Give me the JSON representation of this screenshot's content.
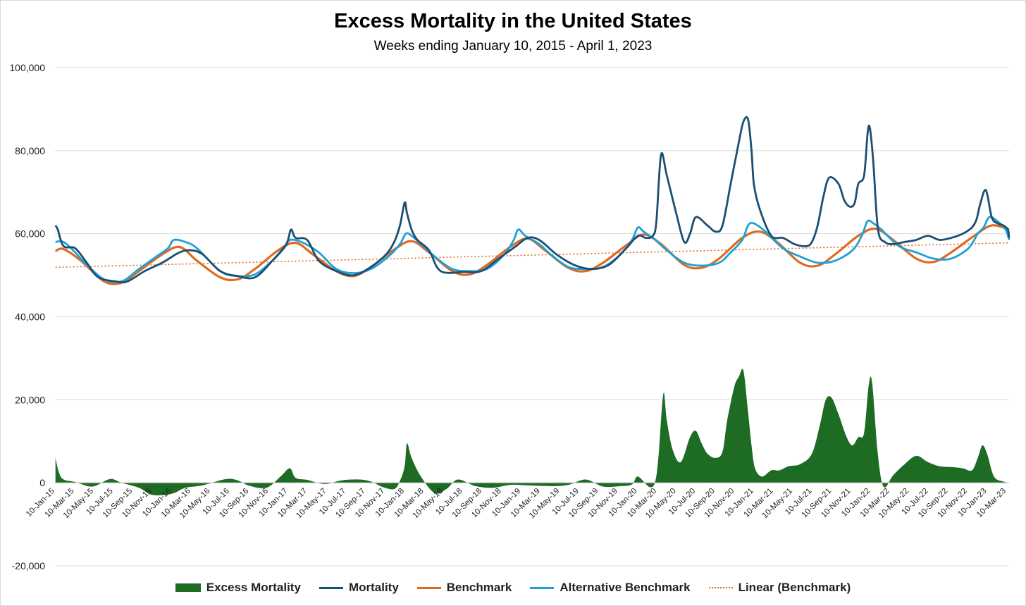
{
  "chart_data": {
    "type": "line",
    "title": "Excess Mortality in the United States",
    "subtitle": "Weeks ending January 10, 2015 - April 1, 2023",
    "xlabel": "",
    "ylabel": "",
    "ylim": [
      -20000,
      100000
    ],
    "yticks": [
      -20000,
      0,
      20000,
      40000,
      60000,
      80000,
      100000
    ],
    "ytick_labels": [
      "-20,000",
      "0",
      "20,000",
      "40,000",
      "60,000",
      "80,000",
      "100,000"
    ],
    "x_range": [
      2015.026,
      2023.25
    ],
    "xtick_labels": [
      "10-Jan-15",
      "10-Mar-15",
      "10-May-15",
      "10-Jul-15",
      "10-Sep-15",
      "10-Nov-15",
      "10-Jan-16",
      "10-Mar-16",
      "10-May-16",
      "10-Jul-16",
      "10-Sep-16",
      "10-Nov-16",
      "10-Jan-17",
      "10-Mar-17",
      "10-May-17",
      "10-Jul-17",
      "10-Sep-17",
      "10-Nov-17",
      "10-Jan-18",
      "10-Mar-18",
      "10-May-18",
      "10-Jul-18",
      "10-Sep-18",
      "10-Nov-18",
      "10-Jan-19",
      "10-Mar-19",
      "10-May-19",
      "10-Jul-19",
      "10-Sep-19",
      "10-Nov-19",
      "10-Jan-20",
      "10-Mar-20",
      "10-May-20",
      "10-Jul-20",
      "10-Sep-20",
      "10-Nov-20",
      "10-Jan-21",
      "10-Mar-21",
      "10-May-21",
      "10-Jul-21",
      "10-Sep-21",
      "10-Nov-21",
      "10-Jan-22",
      "10-Mar-22",
      "10-May-22",
      "10-Jul-22",
      "10-Sep-22",
      "10-Nov-22",
      "10-Jan-23",
      "10-Mar-23"
    ],
    "grid": true,
    "legend_position": "bottom",
    "colors": {
      "excess": "#1e6b24",
      "mortality": "#1b4f72",
      "benchmark": "#e06a1f",
      "alternative": "#1ea1d6",
      "linear": "#e06a1f",
      "grid": "#d9d9d9"
    },
    "series": [
      {
        "name": "Excess Mortality",
        "kind": "area",
        "x": [
          2015.03,
          2015.06,
          2015.1,
          2015.2,
          2015.35,
          2015.5,
          2015.6,
          2015.75,
          2015.85,
          2015.95,
          2016.05,
          2016.15,
          2016.3,
          2016.5,
          2016.6,
          2016.7,
          2016.85,
          2016.97,
          2017.05,
          2017.1,
          2017.2,
          2017.35,
          2017.5,
          2017.65,
          2017.75,
          2017.85,
          2017.95,
          2018.0,
          2018.04,
          2018.06,
          2018.1,
          2018.18,
          2018.3,
          2018.4,
          2018.5,
          2018.65,
          2018.8,
          2018.95,
          2019.1,
          2019.3,
          2019.45,
          2019.6,
          2019.75,
          2019.9,
          2020.0,
          2020.05,
          2020.15,
          2020.2,
          2020.23,
          2020.27,
          2020.3,
          2020.35,
          2020.42,
          2020.5,
          2020.55,
          2020.6,
          2020.65,
          2020.72,
          2020.78,
          2020.82,
          2020.88,
          2020.92,
          2020.96,
          2021.0,
          2021.03,
          2021.06,
          2021.12,
          2021.2,
          2021.27,
          2021.35,
          2021.45,
          2021.55,
          2021.62,
          2021.67,
          2021.72,
          2021.78,
          2021.85,
          2021.9,
          2021.95,
          2022.0,
          2022.04,
          2022.07,
          2022.12,
          2022.17,
          2022.25,
          2022.35,
          2022.45,
          2022.55,
          2022.65,
          2022.75,
          2022.85,
          2022.93,
          2022.98,
          2023.02,
          2023.06,
          2023.12,
          2023.2,
          2023.25
        ],
        "values": [
          6000,
          2500,
          800,
          200,
          -900,
          900,
          0,
          -1200,
          -2800,
          -3000,
          -2500,
          -1200,
          -600,
          900,
          600,
          -700,
          -1200,
          1500,
          3500,
          1200,
          700,
          -300,
          600,
          800,
          300,
          -1000,
          -1500,
          500,
          4000,
          9500,
          6000,
          1500,
          -2500,
          -1500,
          800,
          -800,
          -1200,
          -500,
          -600,
          -800,
          -500,
          800,
          -900,
          -800,
          -400,
          1500,
          -1000,
          300,
          7000,
          21500,
          15000,
          8000,
          5000,
          11000,
          12500,
          9500,
          7000,
          6000,
          7500,
          15000,
          23000,
          25500,
          27000,
          17000,
          9000,
          3500,
          1500,
          3000,
          3000,
          4000,
          4500,
          7000,
          14000,
          20000,
          20500,
          16500,
          11000,
          9000,
          11000,
          12000,
          23500,
          24000,
          6500,
          -1000,
          1800,
          4500,
          6500,
          5000,
          4000,
          3800,
          3500,
          3000,
          6000,
          9000,
          7000,
          1500,
          300,
          0
        ]
      },
      {
        "name": "Mortality",
        "kind": "line",
        "x": [
          2015.03,
          2015.05,
          2015.1,
          2015.2,
          2015.3,
          2015.4,
          2015.55,
          2015.65,
          2015.8,
          2015.95,
          2016.1,
          2016.2,
          2016.3,
          2016.45,
          2016.6,
          2016.75,
          2016.9,
          2017.02,
          2017.06,
          2017.1,
          2017.2,
          2017.3,
          2017.45,
          2017.6,
          2017.75,
          2017.88,
          2017.95,
          2018.0,
          2018.04,
          2018.06,
          2018.1,
          2018.15,
          2018.25,
          2018.35,
          2018.55,
          2018.7,
          2018.85,
          2019.0,
          2019.1,
          2019.2,
          2019.35,
          2019.5,
          2019.65,
          2019.8,
          2019.95,
          2020.05,
          2020.12,
          2020.18,
          2020.21,
          2020.25,
          2020.3,
          2020.38,
          2020.45,
          2020.5,
          2020.55,
          2020.65,
          2020.72,
          2020.78,
          2020.85,
          2020.92,
          2020.96,
          2021.0,
          2021.03,
          2021.05,
          2021.1,
          2021.2,
          2021.3,
          2021.4,
          2021.5,
          2021.55,
          2021.6,
          2021.65,
          2021.7,
          2021.78,
          2021.83,
          2021.88,
          2021.92,
          2021.95,
          2022.0,
          2022.03,
          2022.05,
          2022.08,
          2022.12,
          2022.18,
          2022.25,
          2022.35,
          2022.45,
          2022.55,
          2022.65,
          2022.75,
          2022.85,
          2022.93,
          2022.97,
          2023.0,
          2023.05,
          2023.1,
          2023.15,
          2023.2,
          2023.24,
          2023.25
        ],
        "values": [
          62000,
          61000,
          57000,
          56500,
          53000,
          49500,
          48500,
          48500,
          51000,
          53000,
          55500,
          56000,
          55000,
          51000,
          49800,
          49500,
          53500,
          57500,
          61000,
          59000,
          58500,
          53500,
          51000,
          50000,
          52000,
          55000,
          58000,
          62000,
          67500,
          65000,
          61000,
          58500,
          56000,
          51000,
          50800,
          51000,
          54000,
          57000,
          59000,
          58500,
          55000,
          52500,
          51500,
          52500,
          56500,
          59500,
          59000,
          59500,
          63000,
          79000,
          74000,
          65000,
          58000,
          60000,
          64000,
          62000,
          60500,
          62000,
          72000,
          82000,
          87000,
          87500,
          80000,
          72000,
          66000,
          59500,
          59000,
          57500,
          57000,
          58000,
          62000,
          69000,
          73500,
          72000,
          68000,
          66500,
          67500,
          72000,
          74000,
          84000,
          85500,
          77000,
          61000,
          58000,
          57500,
          58000,
          58500,
          59500,
          58500,
          59000,
          60000,
          61500,
          63500,
          67000,
          70500,
          64000,
          62500,
          62000,
          61000,
          59000
        ]
      },
      {
        "name": "Benchmark",
        "kind": "line",
        "x": [
          2015.03,
          2015.1,
          2015.25,
          2015.45,
          2015.6,
          2015.75,
          2015.95,
          2016.1,
          2016.25,
          2016.45,
          2016.6,
          2016.75,
          2016.95,
          2017.1,
          2017.25,
          2017.45,
          2017.6,
          2017.75,
          2017.95,
          2018.1,
          2018.25,
          2018.45,
          2018.6,
          2018.75,
          2018.95,
          2019.1,
          2019.25,
          2019.45,
          2019.6,
          2019.75,
          2019.95,
          2020.1,
          2020.25,
          2020.45,
          2020.6,
          2020.75,
          2020.95,
          2021.1,
          2021.25,
          2021.45,
          2021.6,
          2021.75,
          2021.95,
          2022.1,
          2022.25,
          2022.45,
          2022.6,
          2022.75,
          2022.95,
          2023.1,
          2023.25
        ],
        "values": [
          55800,
          56300,
          53500,
          48500,
          48200,
          51000,
          55000,
          56800,
          53500,
          49500,
          49000,
          51500,
          56000,
          57800,
          55000,
          51000,
          49800,
          52000,
          56200,
          58200,
          55500,
          51000,
          50200,
          52500,
          56800,
          58800,
          56000,
          51800,
          51000,
          53000,
          57200,
          59800,
          57500,
          52500,
          51800,
          54000,
          59000,
          60500,
          58000,
          53000,
          52300,
          55000,
          59500,
          61200,
          58500,
          54000,
          53200,
          55500,
          59500,
          62000,
          61000
        ]
      },
      {
        "name": "Alternative Benchmark",
        "kind": "line",
        "x": [
          2015.03,
          2015.1,
          2015.2,
          2015.3,
          2015.45,
          2015.6,
          2015.75,
          2015.9,
          2016.0,
          2016.05,
          2016.15,
          2016.25,
          2016.45,
          2016.6,
          2016.75,
          2016.9,
          2017.0,
          2017.05,
          2017.15,
          2017.3,
          2017.45,
          2017.6,
          2017.75,
          2017.9,
          2018.0,
          2018.05,
          2018.1,
          2018.2,
          2018.3,
          2018.45,
          2018.6,
          2018.75,
          2018.9,
          2018.98,
          2019.02,
          2019.08,
          2019.2,
          2019.3,
          2019.45,
          2019.6,
          2019.75,
          2019.9,
          2020.0,
          2020.05,
          2020.1,
          2020.2,
          2020.3,
          2020.45,
          2020.6,
          2020.75,
          2020.85,
          2020.95,
          2021.0,
          2021.05,
          2021.15,
          2021.3,
          2021.45,
          2021.6,
          2021.75,
          2021.9,
          2021.98,
          2022.03,
          2022.08,
          2022.15,
          2022.3,
          2022.45,
          2022.6,
          2022.75,
          2022.9,
          2022.98,
          2023.03,
          2023.08,
          2023.15,
          2023.22,
          2023.25
        ],
        "values": [
          58000,
          58000,
          55500,
          52500,
          49000,
          48500,
          51500,
          54500,
          56500,
          58500,
          58000,
          56500,
          51000,
          49800,
          50200,
          53500,
          56500,
          58500,
          58000,
          55500,
          51500,
          50500,
          51500,
          54500,
          57500,
          60000,
          59500,
          57000,
          54500,
          51500,
          51000,
          51500,
          55000,
          58500,
          61000,
          59500,
          57500,
          55000,
          52000,
          51500,
          52000,
          55000,
          58500,
          61500,
          60500,
          58500,
          56000,
          53000,
          52300,
          53000,
          55500,
          58500,
          62000,
          62500,
          60500,
          56500,
          54500,
          53000,
          53500,
          56000,
          59500,
          63000,
          62500,
          61000,
          57000,
          55500,
          54000,
          54000,
          56500,
          60000,
          61500,
          64000,
          63000,
          61000,
          58500
        ]
      },
      {
        "name": "Linear (Benchmark)",
        "kind": "trend",
        "x": [
          2015.03,
          2023.25
        ],
        "values": [
          51900,
          57800
        ]
      }
    ]
  },
  "legend": [
    {
      "label": "Excess Mortality"
    },
    {
      "label": "Mortality"
    },
    {
      "label": "Benchmark"
    },
    {
      "label": "Alternative Benchmark"
    },
    {
      "label": "Linear (Benchmark)"
    }
  ]
}
